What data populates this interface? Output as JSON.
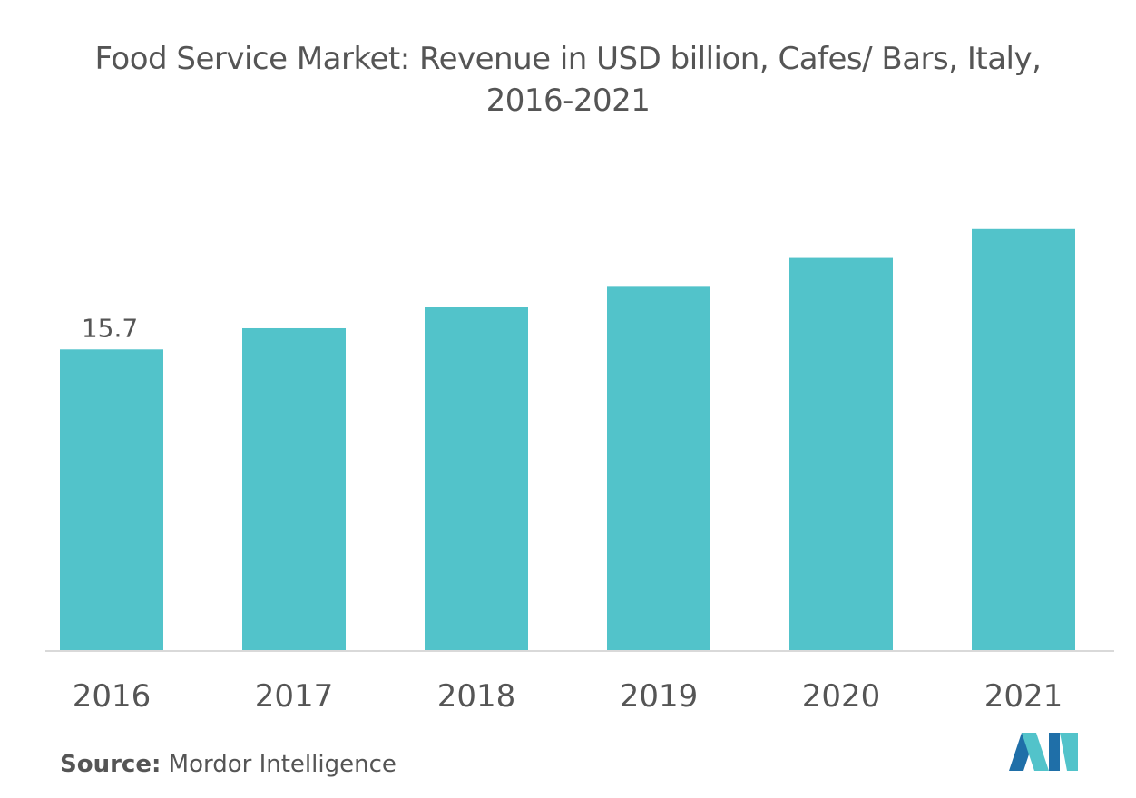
{
  "chart_data": {
    "type": "bar",
    "title_line1": "Food Service Market: Revenue in USD billion, Cafes/ Bars, Italy,",
    "title_line2": "2016-2021",
    "categories": [
      "2016",
      "2017",
      "2018",
      "2019",
      "2020",
      "2021"
    ],
    "values": [
      15.7,
      16.8,
      17.9,
      19.0,
      20.5,
      22.0
    ],
    "data_labels": [
      "15.7",
      "",
      "",
      "",
      "",
      ""
    ],
    "ylim": [
      0,
      23.5
    ],
    "xlabel": "",
    "ylabel": "",
    "grid": false,
    "bar_color": "#52c3ca",
    "axis_color": "#d9d9d9"
  },
  "source": {
    "label": "Source:",
    "text": "Mordor Intelligence"
  },
  "logo": {
    "icon": "mordor-intelligence-logo-icon",
    "colors": [
      "#1f6fa8",
      "#52c3ca"
    ]
  }
}
